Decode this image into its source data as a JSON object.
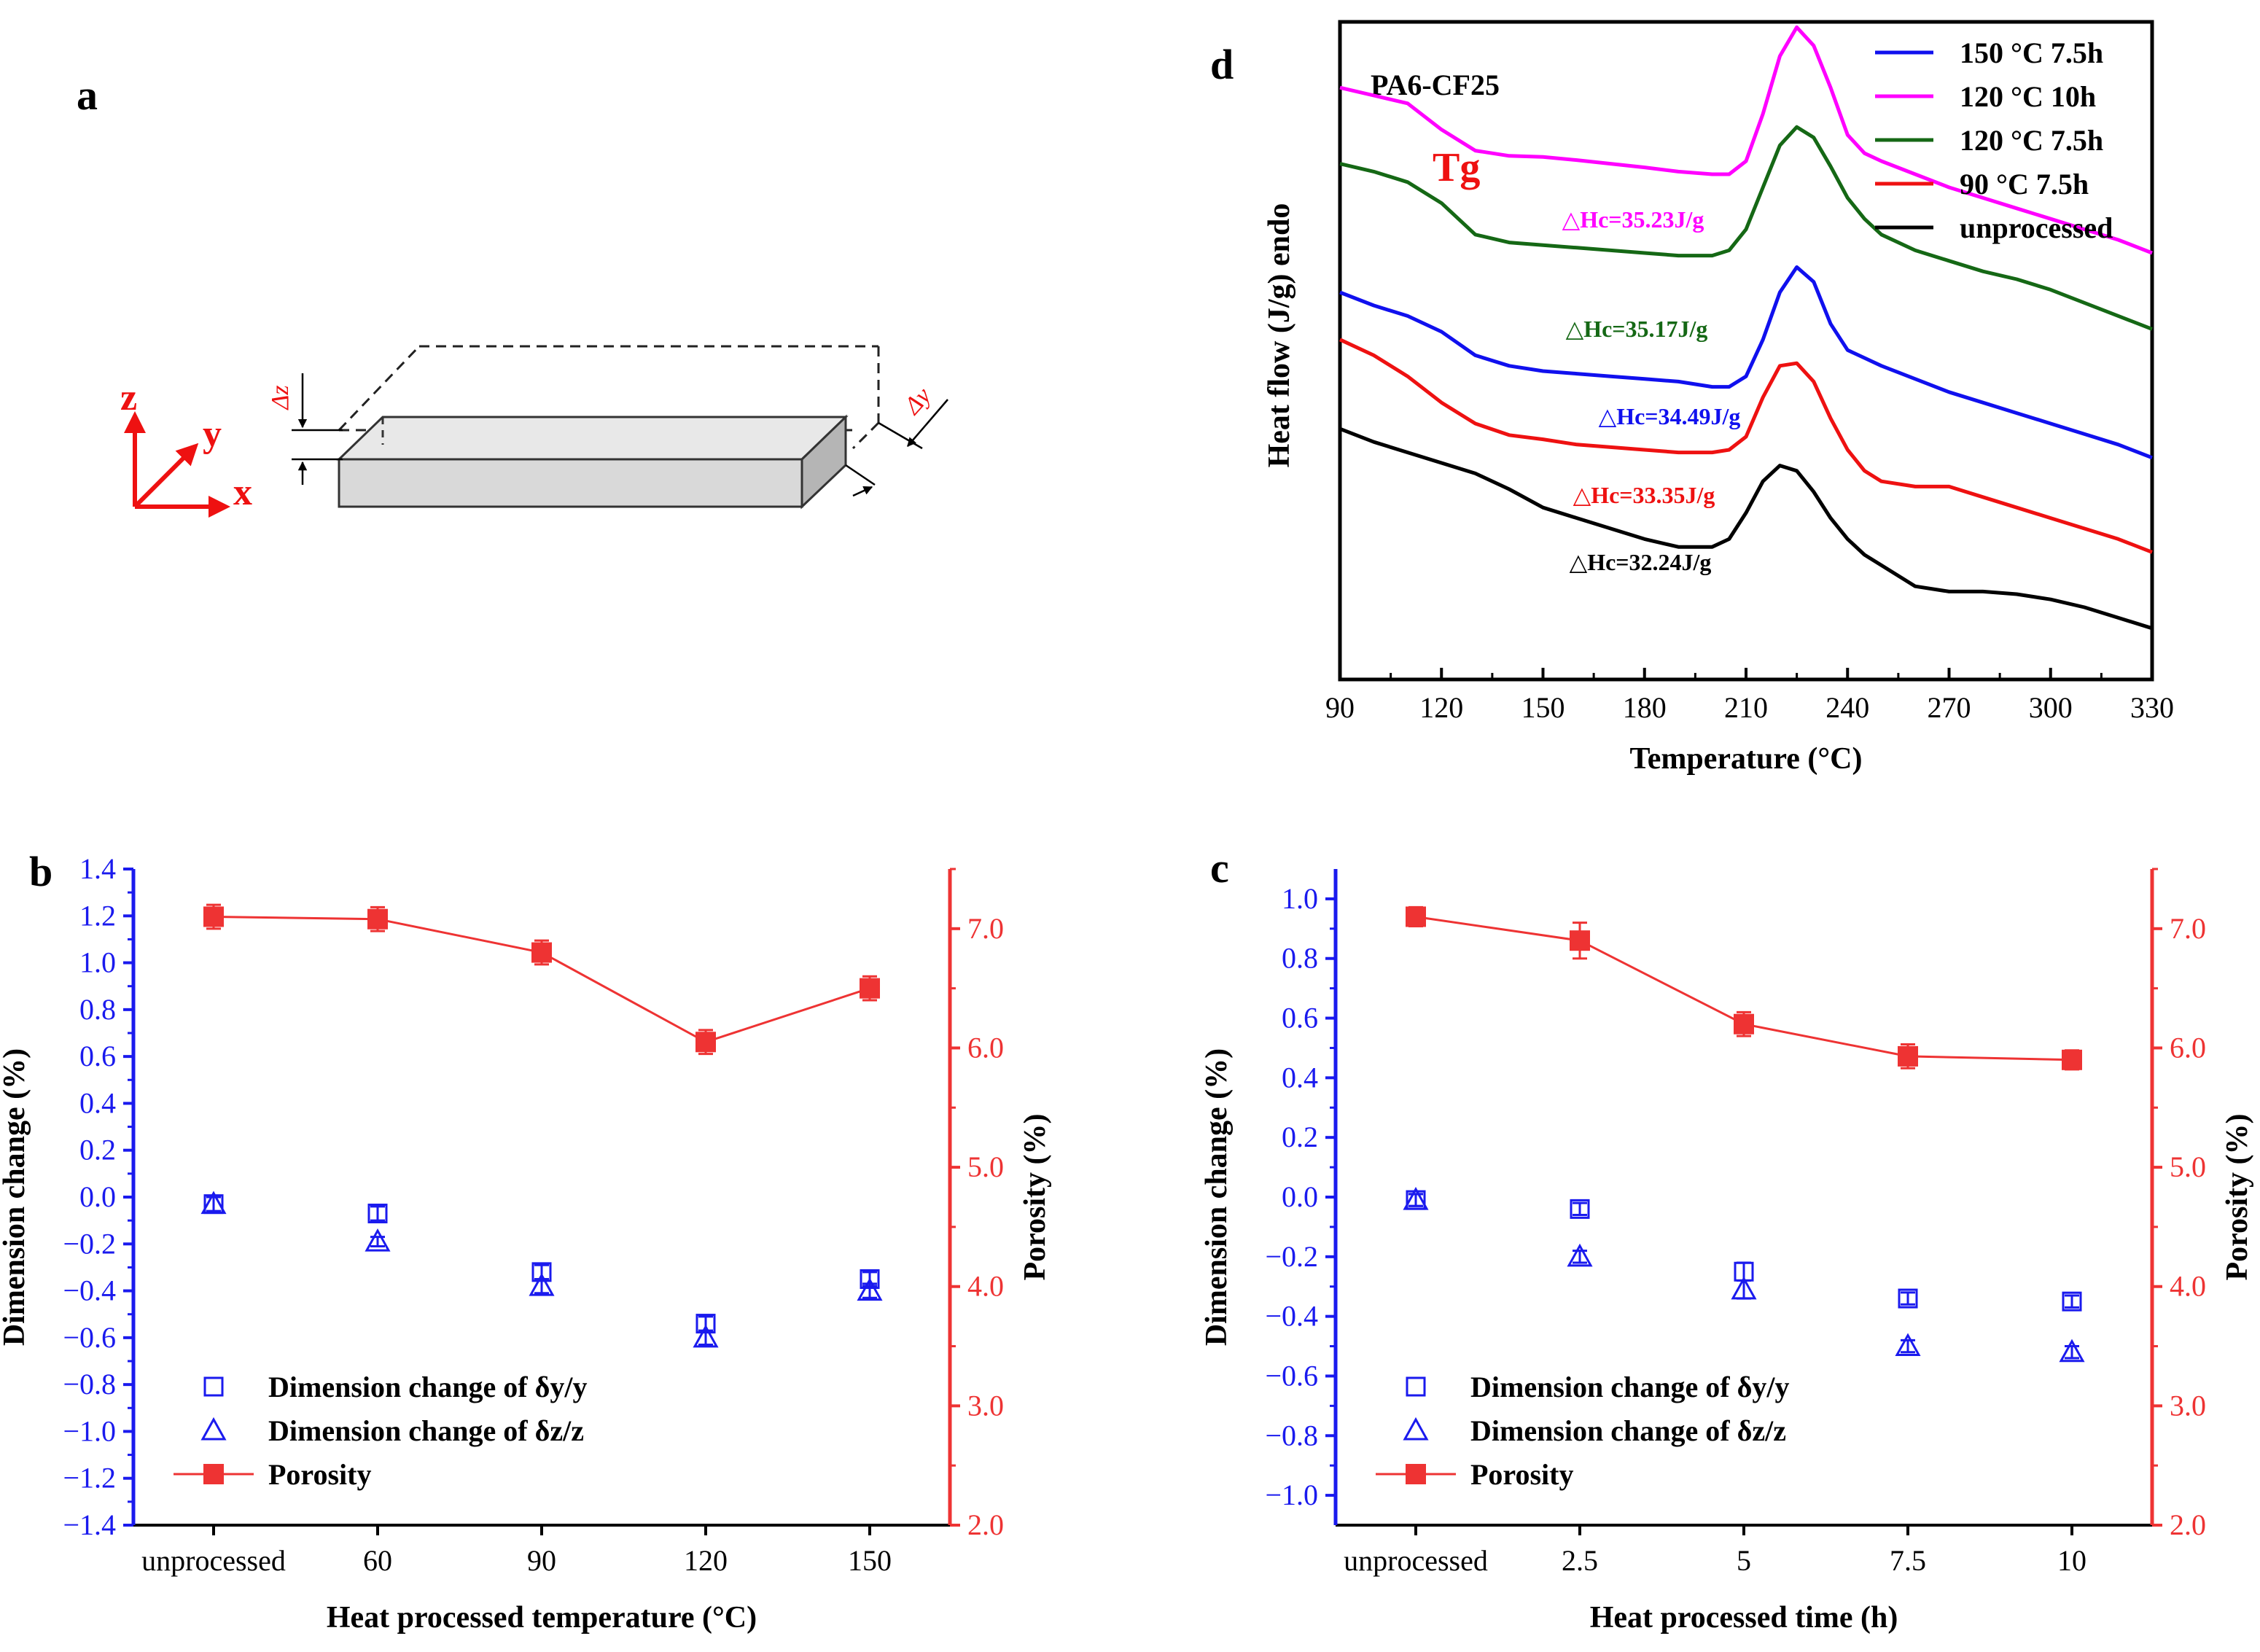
{
  "panel_labels": {
    "a": "a",
    "b": "b",
    "c": "c",
    "d": "d"
  },
  "schematic": {
    "axis_labels": {
      "x": "x",
      "y": "y",
      "z": "z"
    },
    "delta_z": "Δz",
    "delta_y": "Δy"
  },
  "chart_data": [
    {
      "id": "d",
      "type": "line",
      "title": "PA6-CF25",
      "xlabel": "Temperature (°C)",
      "ylabel": "Heat flow (J/g) endo",
      "xlim": [
        90,
        330
      ],
      "xticks": [
        "90",
        "120",
        "150",
        "180",
        "210",
        "240",
        "270",
        "300",
        "330"
      ],
      "annotation_tg": "Tg",
      "legend_position": "top-right",
      "series": [
        {
          "name": "150 °C 7.5h",
          "color": "#1010ee",
          "annotation": "△Hc=34.49J/g",
          "x": [
            90,
            100,
            110,
            120,
            130,
            140,
            150,
            160,
            170,
            180,
            190,
            200,
            205,
            210,
            215,
            220,
            225,
            230,
            235,
            240,
            245,
            250,
            260,
            270,
            280,
            290,
            300,
            310,
            320,
            330
          ],
          "y": [
            0.7,
            0.675,
            0.655,
            0.625,
            0.58,
            0.56,
            0.55,
            0.545,
            0.54,
            0.535,
            0.53,
            0.52,
            0.52,
            0.54,
            0.61,
            0.7,
            0.748,
            0.72,
            0.64,
            0.59,
            0.575,
            0.56,
            0.535,
            0.51,
            0.49,
            0.47,
            0.45,
            0.43,
            0.41,
            0.385
          ]
        },
        {
          "name": "120 °C 10h",
          "color": "#ff00ff",
          "annotation": "△Hc=35.23J/g",
          "x": [
            90,
            100,
            110,
            120,
            130,
            140,
            150,
            160,
            170,
            180,
            190,
            200,
            205,
            210,
            215,
            220,
            225,
            230,
            235,
            240,
            245,
            250,
            260,
            270,
            280,
            290,
            300,
            310,
            320,
            330
          ],
          "y": [
            1.09,
            1.075,
            1.06,
            1.01,
            0.97,
            0.96,
            0.958,
            0.952,
            0.945,
            0.938,
            0.93,
            0.925,
            0.925,
            0.95,
            1.04,
            1.15,
            1.205,
            1.17,
            1.09,
            1.0,
            0.965,
            0.95,
            0.925,
            0.9,
            0.88,
            0.86,
            0.84,
            0.82,
            0.8,
            0.775
          ]
        },
        {
          "name": "120 °C 7.5h",
          "color": "#156815",
          "annotation": "△Hc=35.17J/g",
          "x": [
            90,
            100,
            110,
            120,
            130,
            140,
            150,
            160,
            170,
            180,
            190,
            200,
            205,
            210,
            215,
            220,
            225,
            230,
            235,
            240,
            245,
            250,
            260,
            270,
            280,
            290,
            300,
            310,
            320,
            330
          ],
          "y": [
            0.945,
            0.93,
            0.91,
            0.87,
            0.81,
            0.795,
            0.79,
            0.785,
            0.78,
            0.775,
            0.77,
            0.77,
            0.78,
            0.82,
            0.9,
            0.98,
            1.015,
            0.995,
            0.94,
            0.88,
            0.84,
            0.81,
            0.78,
            0.76,
            0.74,
            0.725,
            0.705,
            0.68,
            0.655,
            0.63
          ]
        },
        {
          "name": "90 °C 7.5h",
          "color": "#ee1111",
          "annotation": "△Hc=33.35J/g",
          "x": [
            90,
            100,
            110,
            120,
            130,
            140,
            150,
            160,
            170,
            180,
            190,
            200,
            205,
            210,
            215,
            220,
            225,
            230,
            235,
            240,
            245,
            250,
            260,
            270,
            280,
            290,
            300,
            310,
            320,
            330
          ],
          "y": [
            0.61,
            0.58,
            0.54,
            0.49,
            0.45,
            0.428,
            0.42,
            0.41,
            0.405,
            0.4,
            0.395,
            0.395,
            0.4,
            0.425,
            0.5,
            0.56,
            0.565,
            0.53,
            0.46,
            0.4,
            0.36,
            0.34,
            0.33,
            0.33,
            0.31,
            0.29,
            0.27,
            0.25,
            0.23,
            0.205
          ]
        },
        {
          "name": "unprocessed",
          "color": "#000000",
          "annotation": "△Hc=32.24J/g",
          "x": [
            90,
            100,
            110,
            120,
            130,
            140,
            150,
            160,
            170,
            180,
            190,
            200,
            205,
            210,
            215,
            220,
            225,
            230,
            235,
            240,
            245,
            250,
            260,
            270,
            280,
            290,
            300,
            310,
            320,
            330
          ],
          "y": [
            0.44,
            0.415,
            0.395,
            0.375,
            0.355,
            0.325,
            0.29,
            0.27,
            0.25,
            0.23,
            0.215,
            0.215,
            0.23,
            0.28,
            0.34,
            0.37,
            0.36,
            0.32,
            0.27,
            0.23,
            0.2,
            0.18,
            0.14,
            0.13,
            0.13,
            0.125,
            0.115,
            0.1,
            0.08,
            0.06
          ]
        }
      ]
    },
    {
      "id": "b",
      "type": "scatter+line",
      "xlabel": "Heat processed temperature (°C)",
      "ylabel_left": "Dimension change (%)",
      "ylabel_right": "Porosity (%)",
      "categories": [
        "unprocessed",
        "60",
        "90",
        "120",
        "150"
      ],
      "ylim_left": [
        -1.4,
        1.4
      ],
      "yticks_left": [
        "−1.4",
        "−1.2",
        "−1.0",
        "−0.8",
        "−0.6",
        "−0.4",
        "−0.2",
        "0.0",
        "0.2",
        "0.4",
        "0.6",
        "0.8",
        "1.0",
        "1.2",
        "1.4"
      ],
      "ylim_right": [
        2.0,
        7.5
      ],
      "yticks_right": [
        "2.0",
        "3.0",
        "4.0",
        "5.0",
        "6.0",
        "7.0"
      ],
      "legend_position": "bottom-left",
      "series": [
        {
          "name": "Dimension change of δy/y",
          "axis": "left",
          "marker": "open-square",
          "color": "#1a1aee",
          "values": [
            -0.03,
            -0.07,
            -0.32,
            -0.54,
            -0.35
          ],
          "errors": [
            0.03,
            0.03,
            0.03,
            0.03,
            0.03
          ]
        },
        {
          "name": "Dimension change of δz/z",
          "axis": "left",
          "marker": "open-triangle",
          "color": "#1a1aee",
          "values": [
            -0.03,
            -0.19,
            -0.38,
            -0.6,
            -0.4
          ],
          "errors": [
            0.03,
            0.02,
            0.03,
            0.03,
            0.03
          ]
        },
        {
          "name": "Porosity",
          "axis": "right",
          "marker": "filled-square-line",
          "color": "#ee3333",
          "values": [
            7.1,
            7.08,
            6.8,
            6.05,
            6.5
          ],
          "errors": [
            0.1,
            0.1,
            0.1,
            0.1,
            0.1
          ]
        }
      ]
    },
    {
      "id": "c",
      "type": "scatter+line",
      "xlabel": "Heat processed time (h)",
      "ylabel_left": "Dimension change (%)",
      "ylabel_right": "Porosity (%)",
      "categories": [
        "unprocessed",
        "2.5",
        "5",
        "7.5",
        "10"
      ],
      "ylim_left": [
        -1.1,
        1.1
      ],
      "yticks_left": [
        "−1.0",
        "−0.8",
        "−0.6",
        "−0.4",
        "−0.2",
        "0.0",
        "0.2",
        "0.4",
        "0.6",
        "0.8",
        "1.0"
      ],
      "ylim_right": [
        2.0,
        7.5
      ],
      "yticks_right": [
        "2.0",
        "3.0",
        "4.0",
        "5.0",
        "6.0",
        "7.0"
      ],
      "legend_position": "bottom-left",
      "series": [
        {
          "name": "Dimension change of δy/y",
          "axis": "left",
          "marker": "open-square",
          "color": "#1a1aee",
          "values": [
            -0.01,
            -0.04,
            -0.25,
            -0.34,
            -0.35
          ],
          "errors": [
            0.02,
            0.02,
            0.03,
            0.02,
            0.02
          ]
        },
        {
          "name": "Dimension change of δz/z",
          "axis": "left",
          "marker": "open-triangle",
          "color": "#1a1aee",
          "values": [
            -0.01,
            -0.2,
            -0.31,
            -0.5,
            -0.52
          ],
          "errors": [
            0.02,
            0.02,
            0.03,
            0.02,
            0.02
          ]
        },
        {
          "name": "Porosity",
          "axis": "right",
          "marker": "filled-square-line",
          "color": "#ee3333",
          "values": [
            7.1,
            6.9,
            6.2,
            5.93,
            5.9
          ],
          "errors": [
            0.08,
            0.15,
            0.1,
            0.1,
            0.08
          ]
        }
      ]
    }
  ]
}
